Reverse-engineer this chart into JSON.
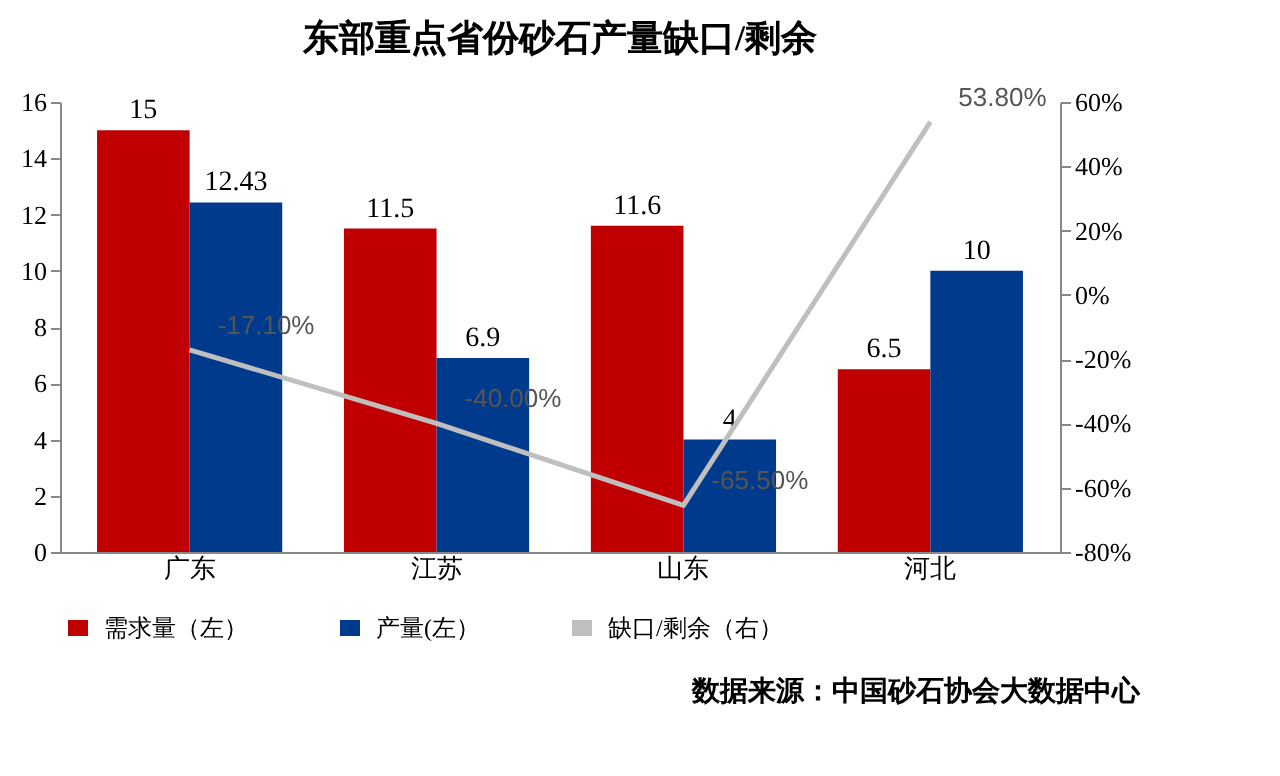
{
  "chart_data": {
    "type": "bar",
    "title": "东部重点省份砂石产量缺口/剩余",
    "categories": [
      "广东",
      "江苏",
      "山东",
      "河北"
    ],
    "series": [
      {
        "name": "需求量（左）",
        "color": "#c00000",
        "values": [
          15,
          11.5,
          11.6,
          6.5
        ]
      },
      {
        "name": "产量(左）",
        "color": "#003a8c",
        "values": [
          12.43,
          6.9,
          4,
          10
        ]
      },
      {
        "name": "缺口/剩余（右）",
        "type": "line",
        "axis": "y2",
        "color": "#bfbfbf",
        "values": [
          -17.1,
          -40.0,
          -65.5,
          53.8
        ],
        "value_labels": [
          "-17.10%",
          "-40.00%",
          "-65.50%",
          "53.80%"
        ]
      }
    ],
    "ylim": [
      0,
      16
    ],
    "yticks": [
      0,
      2,
      4,
      6,
      8,
      10,
      12,
      14,
      16
    ],
    "y2lim": [
      -80,
      60
    ],
    "y2ticks": [
      {
        "value": -80,
        "label": "-80%"
      },
      {
        "value": -60,
        "label": "-60%"
      },
      {
        "value": -40,
        "label": "-40%"
      },
      {
        "value": -20,
        "label": "-20%"
      },
      {
        "value": 0,
        "label": "0%"
      },
      {
        "value": 20,
        "label": "20%"
      },
      {
        "value": 40,
        "label": "40%"
      },
      {
        "value": 60,
        "label": "60%"
      }
    ],
    "data_labels": true,
    "legend": "bottom",
    "annotations": [
      "数据来源：中国砂石协会大数据中心"
    ]
  }
}
